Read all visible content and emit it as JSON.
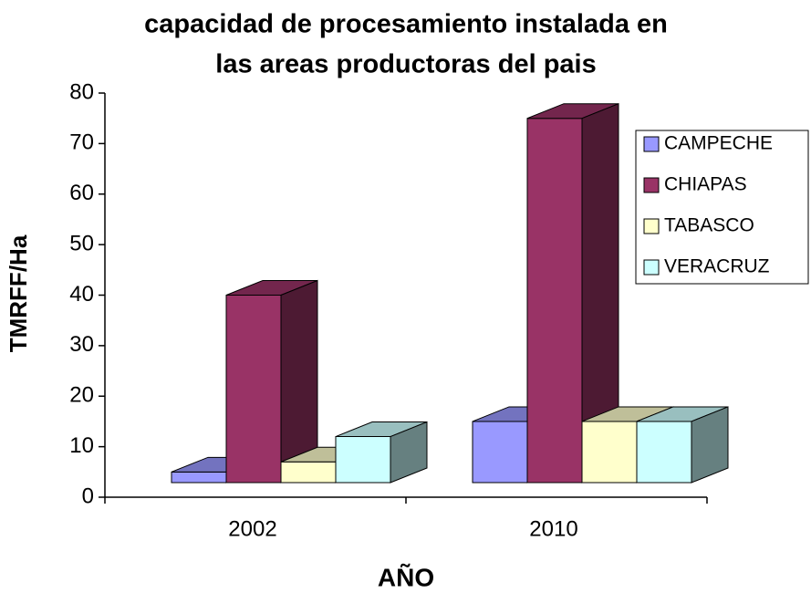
{
  "chart_data": {
    "type": "bar3d",
    "title": [
      "capacidad de procesamiento instalada en",
      "las areas productoras del pais"
    ],
    "x_label": "AÑO",
    "y_label": "TMRFF/Ha",
    "categories": [
      "2002",
      "2010"
    ],
    "series": [
      {
        "name": "CAMPECHE",
        "color": "#9999ff",
        "values": [
          5,
          15
        ]
      },
      {
        "name": "CHIAPAS",
        "color": "#993366",
        "values": [
          40,
          75
        ]
      },
      {
        "name": "TABASCO",
        "color": "#ffffcc",
        "values": [
          7,
          15
        ]
      },
      {
        "name": "VERACRUZ",
        "color": "#ccffff",
        "values": [
          12,
          15
        ]
      }
    ],
    "ylim": [
      0,
      80
    ],
    "yticks": [
      0,
      10,
      20,
      30,
      40,
      50,
      60,
      70,
      80
    ],
    "legend": "right"
  }
}
